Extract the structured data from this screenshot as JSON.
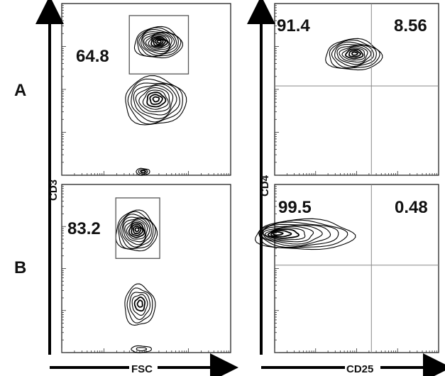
{
  "figure": {
    "row_labels": [
      "A",
      "B"
    ],
    "left_x_label": "FSC",
    "left_y_label": "CD3",
    "right_x_label": "CD25",
    "right_y_label": "CD4"
  },
  "chart_data": [
    {
      "type": "contour",
      "panel": "A-left",
      "xlabel": "FSC",
      "ylabel": "CD3",
      "populations": [
        {
          "cx": 0.57,
          "cy": 0.77,
          "rx": 0.14,
          "ry": 0.09,
          "levels": 12
        },
        {
          "cx": 0.55,
          "cy": 0.43,
          "rx": 0.18,
          "ry": 0.14,
          "levels": 10
        },
        {
          "cx": 0.48,
          "cy": 0.02,
          "rx": 0.04,
          "ry": 0.02,
          "levels": 3
        }
      ],
      "gates": [
        {
          "x": [
            0.4,
            0.75
          ],
          "y": [
            0.59,
            0.93
          ],
          "label": "64.8"
        }
      ]
    },
    {
      "type": "contour",
      "panel": "A-right",
      "xlabel": "CD25",
      "ylabel": "CD4",
      "populations": [
        {
          "cx": 0.48,
          "cy": 0.7,
          "rx": 0.17,
          "ry": 0.09,
          "levels": 10
        }
      ],
      "quadrant_split": {
        "x": 0.59,
        "y": 0.52
      },
      "quadrant_labels": {
        "upper_left": "91.4",
        "upper_right": "8.56"
      }
    },
    {
      "type": "contour",
      "panel": "B-left",
      "xlabel": "FSC",
      "ylabel": "CD3",
      "populations": [
        {
          "cx": 0.44,
          "cy": 0.72,
          "rx": 0.12,
          "ry": 0.12,
          "levels": 11
        },
        {
          "cx": 0.46,
          "cy": 0.28,
          "rx": 0.09,
          "ry": 0.12,
          "levels": 6
        },
        {
          "cx": 0.47,
          "cy": 0.02,
          "rx": 0.06,
          "ry": 0.02,
          "levels": 2
        }
      ],
      "gates": [
        {
          "x": [
            0.32,
            0.58
          ],
          "y": [
            0.56,
            0.92
          ],
          "label": "83.2"
        }
      ]
    },
    {
      "type": "contour",
      "panel": "B-right",
      "xlabel": "CD25",
      "ylabel": "CD4",
      "populations": [
        {
          "cx": 0.18,
          "cy": 0.7,
          "rx": 0.3,
          "ry": 0.09,
          "levels": 10
        }
      ],
      "quadrant_split": {
        "x": 0.59,
        "y": 0.52
      },
      "quadrant_labels": {
        "upper_left": "99.5",
        "upper_right": "0.48"
      }
    }
  ]
}
